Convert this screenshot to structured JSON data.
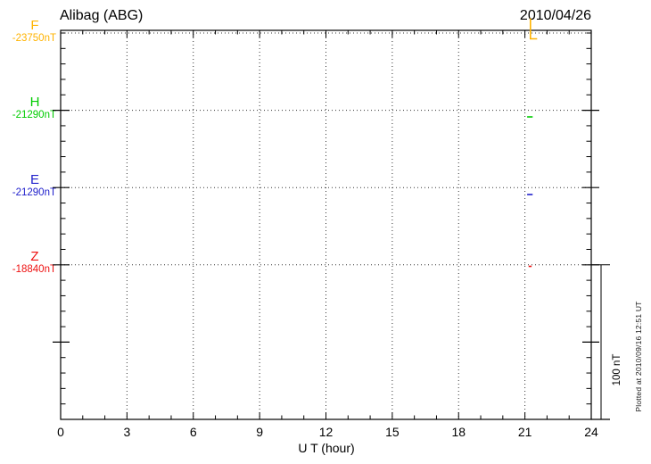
{
  "chart_data": {
    "type": "line",
    "title": "Alibag (ABG)",
    "date": "2010/04/26",
    "xlabel": "U T (hour)",
    "x_range_hours": [
      0,
      24
    ],
    "x_tick_hours": [
      0,
      3,
      6,
      9,
      12,
      15,
      18,
      21,
      24
    ],
    "x_tick_labels": [
      "0",
      "3",
      "6",
      "9",
      "12",
      "15",
      "18",
      "21",
      "24"
    ],
    "x_minor_step_hours": 1,
    "x_major_step_hours": 3,
    "grid_vertical_hours": [
      3,
      6,
      9,
      12,
      15,
      18,
      21
    ],
    "y_minor_step_nT": 20,
    "y_division_nT": 100,
    "scale_bar_label": "100 nT",
    "plotted_at": "Plotted at 2010/09/16 12:51 UT",
    "series": [
      {
        "name": "F",
        "baseline_value": "-23750nT",
        "color": "#ffb300",
        "points_hour_offsetnT": [
          [
            21.25,
            19
          ],
          [
            21.25,
            -7.5
          ],
          [
            21.55,
            -7.5
          ]
        ]
      },
      {
        "name": "H",
        "baseline_value": "-21290nT",
        "color": "#00cc00",
        "points_hour_offsetnT": [
          [
            21.1,
            -8.5
          ],
          [
            21.35,
            -8.5
          ]
        ]
      },
      {
        "name": "E",
        "baseline_value": "-21290nT",
        "color": "#2222cc",
        "points_hour_offsetnT": [
          [
            21.1,
            -9
          ],
          [
            21.35,
            -9
          ]
        ]
      },
      {
        "name": "Z",
        "baseline_value": "-18840nT",
        "color": "#ee1111",
        "points_hour_offsetnT": [
          [
            21.17,
            -2
          ],
          [
            21.3,
            -2
          ]
        ]
      }
    ]
  }
}
